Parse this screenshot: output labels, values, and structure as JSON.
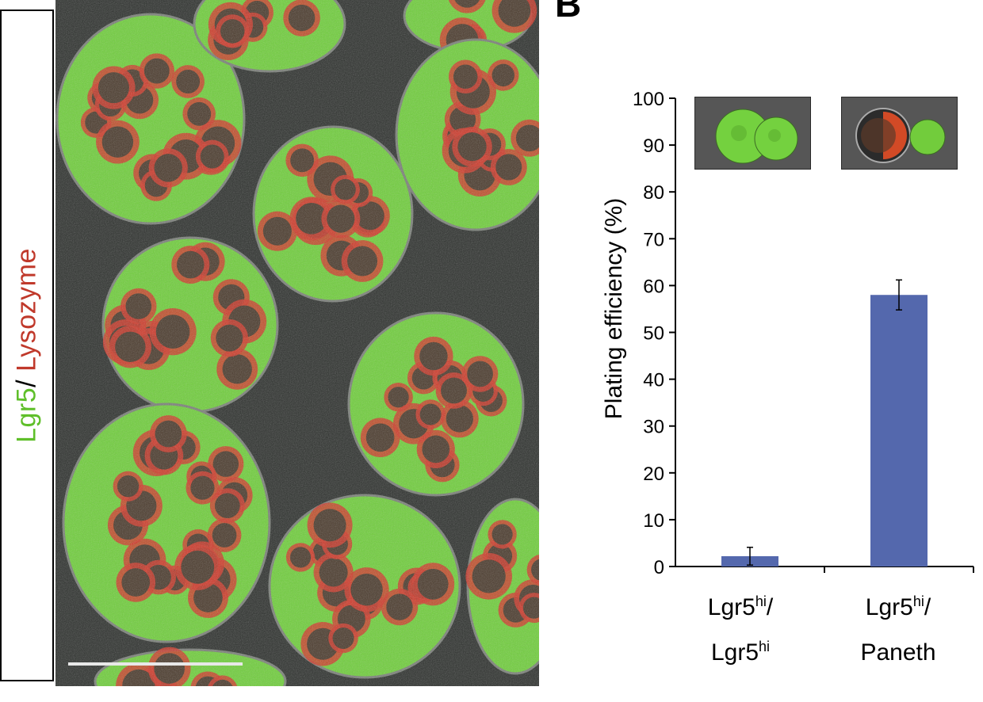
{
  "panel_a": {
    "label_green": "Lgr5",
    "label_sep": "/ ",
    "label_red": "Lysozyme",
    "colors": {
      "green": "#6fcf3a",
      "red": "#d03a2a",
      "background": "#2c2f2c"
    }
  },
  "panel_b": {
    "panel_letter": "B",
    "inset_left": "Lgr5hi/Lgr5hi organoid image",
    "inset_right": "Lgr5hi/Paneth organoid image"
  },
  "chart_data": {
    "type": "bar",
    "categories": [
      {
        "line1_main": "Lgr5",
        "line1_sup": "hi",
        "line1_tail": "/",
        "line2_main": "Lgr5",
        "line2_sup": "hi"
      },
      {
        "line1_main": "Lgr5",
        "line1_sup": "hi",
        "line1_tail": "/",
        "line2_main": "Paneth",
        "line2_sup": ""
      }
    ],
    "values": [
      2.2,
      58
    ],
    "error": [
      1.9,
      3.2
    ],
    "ylabel": "Plating efficiency (%)",
    "ylim": [
      0,
      100
    ],
    "yticks": [
      0,
      10,
      20,
      30,
      40,
      50,
      60,
      70,
      80,
      90,
      100
    ],
    "bar_color": "#5468ad",
    "grid": false
  }
}
